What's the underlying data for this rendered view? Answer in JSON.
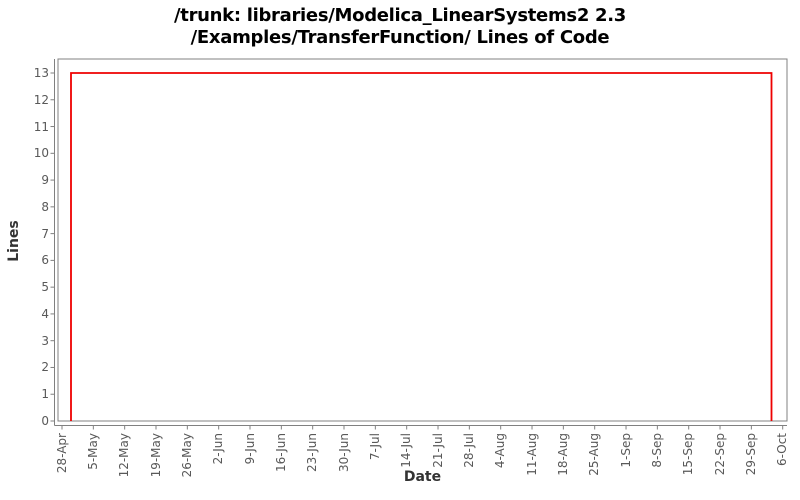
{
  "title": {
    "line1": "/trunk: libraries/Modelica_LinearSystems2 2.3",
    "line2": "/Examples/TransferFunction/ Lines of Code"
  },
  "chart_data": {
    "type": "line",
    "subtype": "step",
    "title": "/trunk: libraries/Modelica_LinearSystems2 2.3 /Examples/TransferFunction/ Lines of Code",
    "xlabel": "Date",
    "ylabel": "Lines",
    "grid": false,
    "legend": false,
    "x_tick_labels": [
      "28-Apr",
      "5-May",
      "12-May",
      "19-May",
      "26-May",
      "2-Jun",
      "9-Jun",
      "16-Jun",
      "23-Jun",
      "30-Jun",
      "7-Jul",
      "14-Jul",
      "21-Jul",
      "28-Jul",
      "4-Aug",
      "11-Aug",
      "18-Aug",
      "25-Aug",
      "1-Sep",
      "8-Sep",
      "15-Sep",
      "22-Sep",
      "29-Sep",
      "6-Oct"
    ],
    "x_tick_interval_days": 7,
    "x_range_days": [
      0,
      161
    ],
    "y_ticks": [
      0,
      1,
      2,
      3,
      4,
      5,
      6,
      7,
      8,
      9,
      10,
      11,
      12,
      13
    ],
    "ylim": [
      0,
      13.6
    ],
    "series": [
      {
        "name": "Lines of Code",
        "color": "#ee0000",
        "points": [
          {
            "date": "30-Apr",
            "day": 2,
            "value": 0
          },
          {
            "date": "30-Apr",
            "day": 2,
            "value": 13
          },
          {
            "date": "3-Oct",
            "day": 158.5,
            "value": 13
          },
          {
            "date": "3-Oct",
            "day": 158.5,
            "value": 0
          }
        ]
      }
    ]
  },
  "colors": {
    "background": "#ffffff",
    "title_text": "#000000",
    "series_line": "#ee0000",
    "plot_border": "#808080",
    "axis_line": "#808080",
    "tick_mark": "#808080",
    "tick_label": "#595959",
    "axis_label": "#333333"
  }
}
